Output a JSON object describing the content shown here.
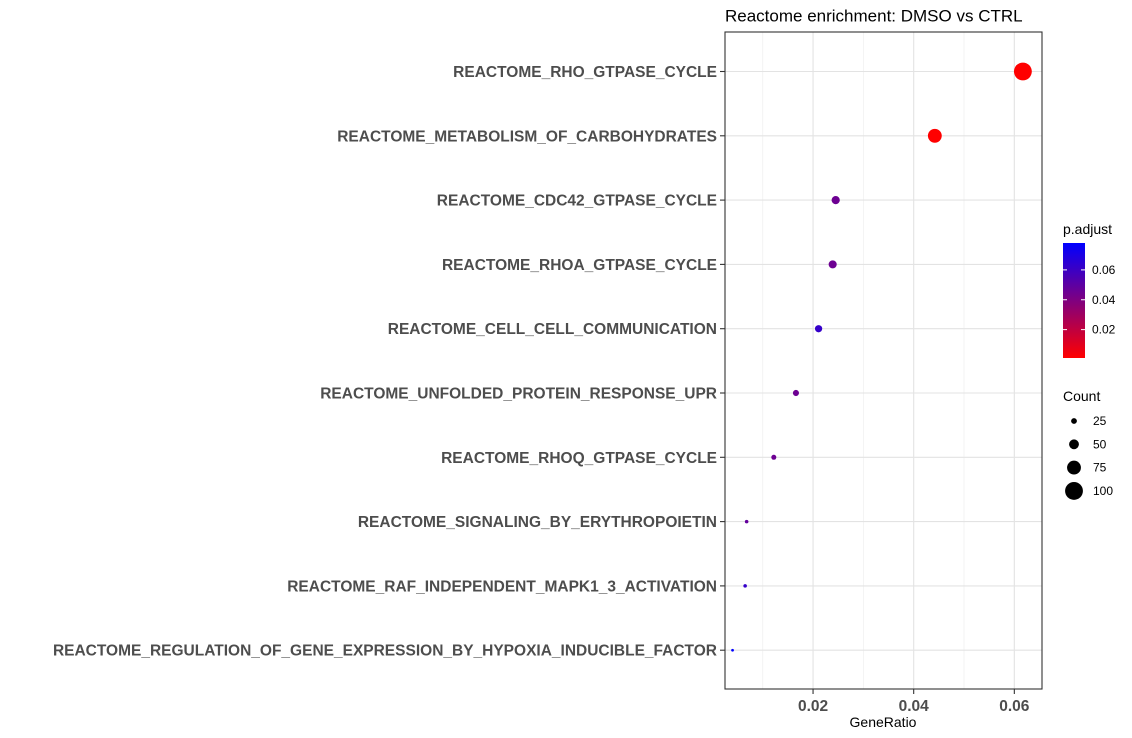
{
  "chart_data": {
    "type": "scatter",
    "title": "Reactome enrichment: DMSO vs CTRL",
    "xlabel": "GeneRatio",
    "ylabel": "",
    "xlim": [
      0.0025,
      0.0655
    ],
    "xticks": [
      0.02,
      0.04,
      0.06
    ],
    "xtick_labels": [
      "0.02",
      "0.04",
      "0.06"
    ],
    "grid": true,
    "categories": [
      "REACTOME_RHO_GTPASE_CYCLE",
      "REACTOME_METABOLISM_OF_CARBOHYDRATES",
      "REACTOME_CDC42_GTPASE_CYCLE",
      "REACTOME_RHOA_GTPASE_CYCLE",
      "REACTOME_CELL_CELL_COMMUNICATION",
      "REACTOME_UNFOLDED_PROTEIN_RESPONSE_UPR",
      "REACTOME_RHOQ_GTPASE_CYCLE",
      "REACTOME_SIGNALING_BY_ERYTHROPOIETIN",
      "REACTOME_RAF_INDEPENDENT_MAPK1_3_ACTIVATION",
      "REACTOME_REGULATION_OF_GENE_EXPRESSION_BY_HYPOXIA_INDUCIBLE_FACTOR"
    ],
    "points": [
      {
        "category": "REACTOME_RHO_GTPASE_CYCLE",
        "gene_ratio": 0.0617,
        "count": 100,
        "p_adjust": 0.001
      },
      {
        "category": "REACTOME_METABOLISM_OF_CARBOHYDRATES",
        "gene_ratio": 0.0442,
        "count": 75,
        "p_adjust": 0.001
      },
      {
        "category": "REACTOME_CDC42_GTPASE_CYCLE",
        "gene_ratio": 0.0245,
        "count": 40,
        "p_adjust": 0.045
      },
      {
        "category": "REACTOME_RHOA_GTPASE_CYCLE",
        "gene_ratio": 0.0239,
        "count": 39,
        "p_adjust": 0.045
      },
      {
        "category": "REACTOME_CELL_CELL_COMMUNICATION",
        "gene_ratio": 0.0211,
        "count": 34,
        "p_adjust": 0.062
      },
      {
        "category": "REACTOME_UNFOLDED_PROTEIN_RESPONSE_UPR",
        "gene_ratio": 0.0166,
        "count": 27,
        "p_adjust": 0.045
      },
      {
        "category": "REACTOME_RHOQ_GTPASE_CYCLE",
        "gene_ratio": 0.0122,
        "count": 20,
        "p_adjust": 0.045
      },
      {
        "category": "REACTOME_SIGNALING_BY_ERYTHROPOIETIN",
        "gene_ratio": 0.0068,
        "count": 11,
        "p_adjust": 0.048
      },
      {
        "category": "REACTOME_RAF_INDEPENDENT_MAPK1_3_ACTIVATION",
        "gene_ratio": 0.0065,
        "count": 11,
        "p_adjust": 0.062
      },
      {
        "category": "REACTOME_REGULATION_OF_GENE_EXPRESSION_BY_HYPOXIA_INDUCIBLE_FACTOR",
        "gene_ratio": 0.004,
        "count": 6,
        "p_adjust": 0.078
      }
    ],
    "color_legend": {
      "title": "p.adjust",
      "ticks": [
        0.06,
        0.04,
        0.02
      ],
      "tick_labels": [
        "0.06",
        "0.04",
        "0.02"
      ],
      "range": [
        0.001,
        0.078
      ],
      "low_color": "#ff0000",
      "high_color": "#0000ff"
    },
    "size_legend": {
      "title": "Count",
      "values": [
        25,
        50,
        75,
        100
      ],
      "labels": [
        "25",
        "50",
        "75",
        "100"
      ]
    },
    "legend_position": "right"
  }
}
